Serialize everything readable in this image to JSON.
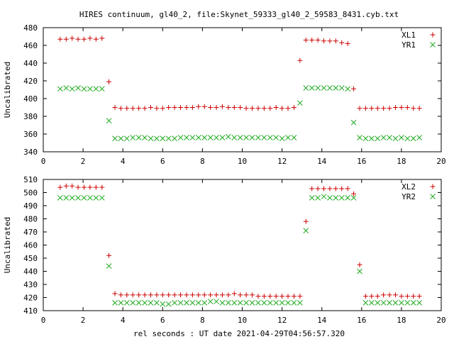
{
  "figure": {
    "title": "HIRES continuum, gl40_2, file:Skynet_59333_gl40_2_59583_8431.cyb.txt",
    "xlabel": "rel seconds : UT date 2021-04-29T04:56:57.320"
  },
  "colors": {
    "red_series": "#cc0000",
    "green_series": "#22aa22",
    "axis": "#000000",
    "background": "#ffffff"
  },
  "chart_data": [
    {
      "type": "scatter",
      "title": "HIRES continuum, gl40_2, file:Skynet_59333_gl40_2_59583_8431.cyb.txt",
      "xlabel": "",
      "ylabel": "Uncalibrated",
      "xlim": [
        0,
        20
      ],
      "ylim": [
        340,
        480
      ],
      "xticks": [
        0,
        2,
        4,
        6,
        8,
        10,
        12,
        14,
        16,
        18,
        20
      ],
      "yticks": [
        340,
        360,
        380,
        400,
        420,
        440,
        460,
        480
      ],
      "grid": false,
      "legend_position": "top-right",
      "series": [
        {
          "name": "XL1",
          "marker": "plus",
          "color": "#cc0000",
          "x": [
            0.85,
            1.15,
            1.45,
            1.75,
            2.05,
            2.35,
            2.65,
            2.95,
            3.3,
            3.6,
            3.9,
            4.2,
            4.5,
            4.8,
            5.1,
            5.4,
            5.7,
            6.0,
            6.3,
            6.6,
            6.9,
            7.2,
            7.5,
            7.8,
            8.1,
            8.4,
            8.7,
            9.0,
            9.3,
            9.6,
            9.9,
            10.2,
            10.5,
            10.8,
            11.1,
            11.4,
            11.7,
            12.0,
            12.3,
            12.6,
            12.9,
            13.2,
            13.5,
            13.8,
            14.1,
            14.4,
            14.7,
            15.0,
            15.3,
            15.6,
            15.9,
            16.2,
            16.5,
            16.8,
            17.1,
            17.4,
            17.7,
            18.0,
            18.3,
            18.6,
            18.9
          ],
          "y": [
            467,
            467,
            468,
            467,
            467,
            468,
            467,
            468,
            419,
            390,
            389,
            389,
            389,
            389,
            389,
            390,
            389,
            389,
            390,
            390,
            390,
            390,
            390,
            391,
            391,
            390,
            390,
            391,
            390,
            390,
            390,
            389,
            389,
            389,
            389,
            389,
            390,
            389,
            389,
            390,
            443,
            466,
            466,
            466,
            465,
            465,
            465,
            463,
            462,
            411,
            389,
            389,
            389,
            389,
            389,
            389,
            390,
            390,
            390,
            389,
            389
          ]
        },
        {
          "name": "YR1",
          "marker": "cross",
          "color": "#22aa22",
          "x": [
            0.85,
            1.15,
            1.45,
            1.75,
            2.05,
            2.35,
            2.65,
            2.95,
            3.3,
            3.6,
            3.9,
            4.2,
            4.5,
            4.8,
            5.1,
            5.4,
            5.7,
            6.0,
            6.3,
            6.6,
            6.9,
            7.2,
            7.5,
            7.8,
            8.1,
            8.4,
            8.7,
            9.0,
            9.3,
            9.6,
            9.9,
            10.2,
            10.5,
            10.8,
            11.1,
            11.4,
            11.7,
            12.0,
            12.3,
            12.6,
            12.9,
            13.2,
            13.5,
            13.8,
            14.1,
            14.4,
            14.7,
            15.0,
            15.3,
            15.6,
            15.9,
            16.2,
            16.5,
            16.8,
            17.1,
            17.4,
            17.7,
            18.0,
            18.3,
            18.6,
            18.9
          ],
          "y": [
            411,
            412,
            411,
            412,
            411,
            411,
            411,
            411,
            375,
            355,
            355,
            355,
            356,
            356,
            356,
            355,
            355,
            355,
            355,
            355,
            356,
            356,
            356,
            356,
            356,
            356,
            356,
            356,
            357,
            356,
            356,
            356,
            356,
            356,
            356,
            356,
            356,
            355,
            356,
            356,
            395,
            412,
            412,
            412,
            412,
            412,
            412,
            412,
            411,
            373,
            356,
            355,
            355,
            355,
            356,
            356,
            355,
            356,
            355,
            355,
            356
          ]
        }
      ]
    },
    {
      "type": "scatter",
      "title": "",
      "xlabel": "rel seconds : UT date 2021-04-29T04:56:57.320",
      "ylabel": "Uncalibrated",
      "xlim": [
        0,
        20
      ],
      "ylim": [
        410,
        510
      ],
      "xticks": [
        0,
        2,
        4,
        6,
        8,
        10,
        12,
        14,
        16,
        18,
        20
      ],
      "yticks": [
        410,
        420,
        430,
        440,
        450,
        460,
        470,
        480,
        490,
        500,
        510
      ],
      "grid": false,
      "legend_position": "top-right",
      "series": [
        {
          "name": "XL2",
          "marker": "plus",
          "color": "#cc0000",
          "x": [
            0.85,
            1.15,
            1.45,
            1.75,
            2.05,
            2.35,
            2.65,
            2.95,
            3.3,
            3.6,
            3.9,
            4.2,
            4.5,
            4.8,
            5.1,
            5.4,
            5.7,
            6.0,
            6.3,
            6.6,
            6.9,
            7.2,
            7.5,
            7.8,
            8.1,
            8.4,
            8.7,
            9.0,
            9.3,
            9.6,
            9.9,
            10.2,
            10.5,
            10.8,
            11.1,
            11.4,
            11.7,
            12.0,
            12.3,
            12.6,
            12.9,
            13.2,
            13.5,
            13.8,
            14.1,
            14.4,
            14.7,
            15.0,
            15.3,
            15.6,
            15.9,
            16.2,
            16.5,
            16.8,
            17.1,
            17.4,
            17.7,
            18.0,
            18.3,
            18.6,
            18.9
          ],
          "y": [
            504,
            505,
            505,
            504,
            504,
            504,
            504,
            504,
            452,
            423,
            422,
            422,
            422,
            422,
            422,
            422,
            422,
            422,
            422,
            422,
            422,
            422,
            422,
            422,
            422,
            422,
            422,
            422,
            422,
            423,
            422,
            422,
            422,
            421,
            421,
            421,
            421,
            421,
            421,
            421,
            421,
            478,
            503,
            503,
            503,
            503,
            503,
            503,
            503,
            499,
            445,
            421,
            421,
            421,
            422,
            422,
            422,
            421,
            421,
            421,
            421
          ]
        },
        {
          "name": "YR2",
          "marker": "cross",
          "color": "#22aa22",
          "x": [
            0.85,
            1.15,
            1.45,
            1.75,
            2.05,
            2.35,
            2.65,
            2.95,
            3.3,
            3.6,
            3.9,
            4.2,
            4.5,
            4.8,
            5.1,
            5.4,
            5.7,
            6.0,
            6.3,
            6.6,
            6.9,
            7.2,
            7.5,
            7.8,
            8.1,
            8.4,
            8.7,
            9.0,
            9.3,
            9.6,
            9.9,
            10.2,
            10.5,
            10.8,
            11.1,
            11.4,
            11.7,
            12.0,
            12.3,
            12.6,
            12.9,
            13.2,
            13.5,
            13.8,
            14.1,
            14.4,
            14.7,
            15.0,
            15.3,
            15.6,
            15.9,
            16.2,
            16.5,
            16.8,
            17.1,
            17.4,
            17.7,
            18.0,
            18.3,
            18.6,
            18.9
          ],
          "y": [
            496,
            496,
            496,
            496,
            496,
            496,
            496,
            496,
            444,
            416,
            416,
            416,
            416,
            416,
            416,
            416,
            416,
            415,
            415,
            416,
            416,
            416,
            416,
            416,
            416,
            417,
            417,
            416,
            416,
            416,
            416,
            416,
            416,
            416,
            416,
            416,
            416,
            416,
            416,
            416,
            416,
            471,
            496,
            496,
            497,
            496,
            496,
            496,
            496,
            496,
            440,
            416,
            416,
            416,
            416,
            416,
            416,
            416,
            416,
            416,
            416
          ]
        }
      ]
    }
  ]
}
